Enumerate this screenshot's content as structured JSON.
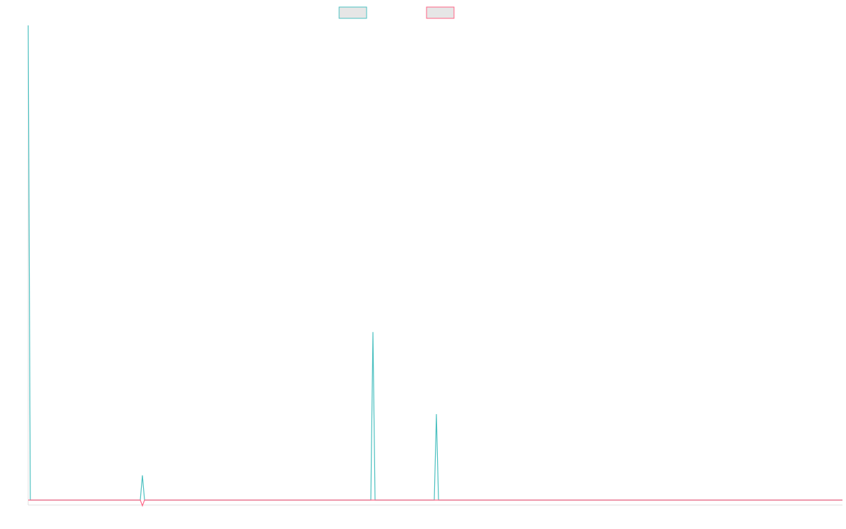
{
  "chart_data": {
    "type": "line",
    "xlim": [
      0,
      385
    ],
    "ylim": [
      -1,
      100
    ],
    "series": [
      {
        "color": "#4bc0c0",
        "x": [
          0,
          1,
          53,
          54,
          55,
          162,
          163,
          164,
          192,
          193,
          194,
          385
        ],
        "values": [
          100,
          0,
          0,
          5.2,
          0,
          0,
          35.4,
          0,
          0,
          18.1,
          0,
          0
        ]
      },
      {
        "color": "#ff6384",
        "x": [
          0,
          53,
          54,
          55,
          385
        ],
        "values": [
          0,
          0,
          -1.2,
          0,
          0
        ]
      }
    ]
  }
}
